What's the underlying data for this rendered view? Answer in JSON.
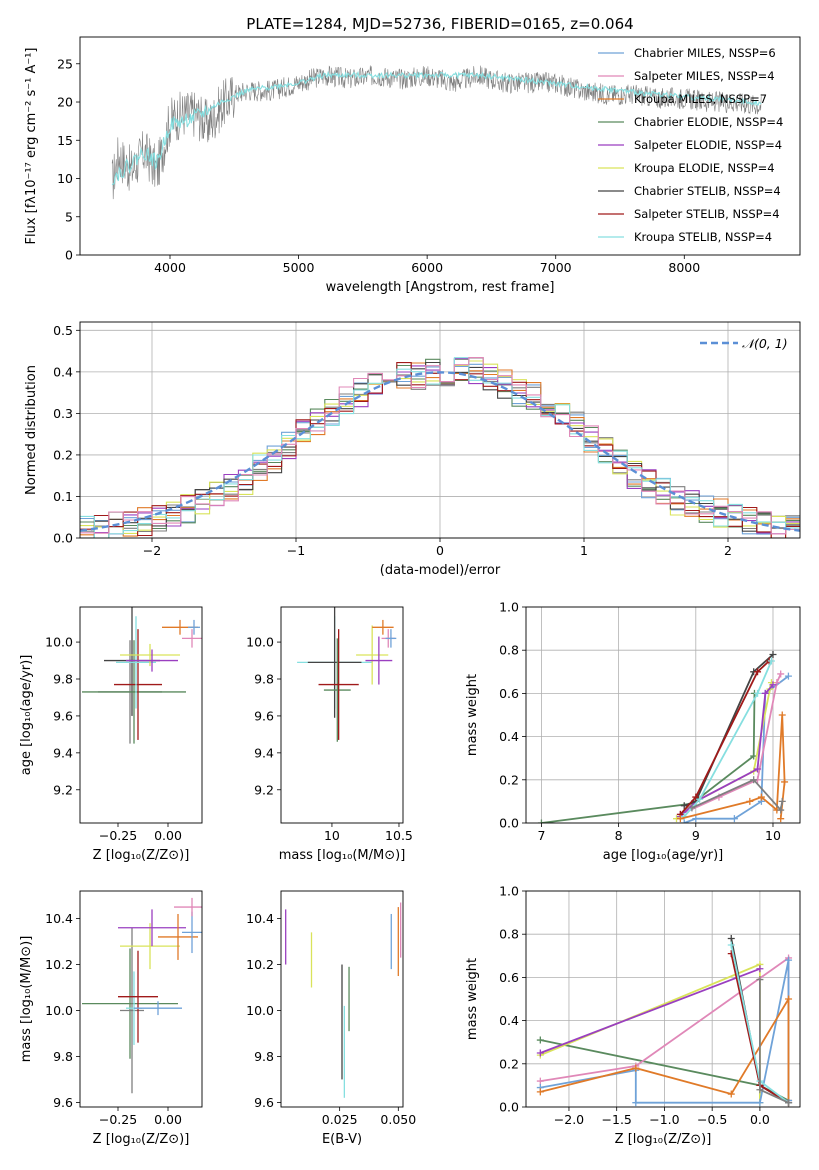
{
  "title": "PLATE=1284, MJD=52736, FIBERID=0165, z=0.064",
  "model_colors": [
    "#7f7f7f",
    "#6fa2d8",
    "#e07a28",
    "#5a8a5e",
    "#9a3fc0",
    "#d9e35a",
    "#444444",
    "#a01a1a",
    "#86dfe0",
    "#e088b8"
  ],
  "chart_data": [
    {
      "id": "spectrum",
      "type": "line",
      "xlabel": "wavelength [Angstrom, rest frame]",
      "ylabel": "Flux [fλ10⁻¹⁷ erg cm⁻² s⁻¹ A⁻¹]",
      "xlim": [
        3300,
        8900
      ],
      "ylim": [
        0,
        28.5
      ],
      "xticks": [
        4000,
        5000,
        6000,
        7000,
        8000
      ],
      "yticks": [
        0,
        5,
        10,
        15,
        20,
        25
      ],
      "grid": false,
      "legend_position": "top-right",
      "legend": [
        {
          "label": "Chabrier MILES, NSSP=6",
          "color": "#6fa2d8"
        },
        {
          "label": "Salpeter MILES, NSSP=4",
          "color": "#e088b8"
        },
        {
          "label": "Kroupa MILES, NSSP=7",
          "color": "#e07a28"
        },
        {
          "label": "Chabrier ELODIE, NSSP=4",
          "color": "#5a8a5e"
        },
        {
          "label": "Salpeter ELODIE, NSSP=4",
          "color": "#9a3fc0"
        },
        {
          "label": "Kroupa ELODIE, NSSP=4",
          "color": "#d9e35a"
        },
        {
          "label": "Chabrier STELIB, NSSP=4",
          "color": "#444444"
        },
        {
          "label": "Salpeter STELIB, NSSP=4",
          "color": "#a01a1a"
        },
        {
          "label": "Kroupa STELIB, NSSP=4",
          "color": "#86dfe0"
        }
      ],
      "series": [
        {
          "name": "data",
          "color": "#7f7f7f",
          "x": [
            3550,
            3600,
            3700,
            3800,
            3900,
            4000,
            4100,
            4200,
            4300,
            4400,
            4500,
            4600,
            4800,
            5000,
            5200,
            5400,
            5600,
            5800,
            6000,
            6200,
            6400,
            6600,
            6800,
            7000,
            7200,
            7400,
            7600,
            7800,
            8000,
            8200,
            8400,
            8600
          ],
          "y": [
            9.5,
            13,
            11,
            13.5,
            11,
            17.5,
            18.5,
            18.5,
            17,
            19.5,
            21,
            21.5,
            21.5,
            22.5,
            23.5,
            23,
            23.5,
            23,
            23.5,
            22.5,
            23.5,
            22.5,
            22.5,
            22.5,
            21.5,
            21,
            21,
            20.5,
            20.5,
            20,
            20,
            19.5
          ]
        },
        {
          "name": "model",
          "color": "#86dfe0",
          "x": [
            3550,
            3700,
            3800,
            3900,
            4000,
            4200,
            4400,
            4600,
            4800,
            5000,
            5200,
            5400,
            5600,
            6000,
            6400,
            6800,
            7200,
            7600,
            8000,
            8400,
            8600
          ],
          "y": [
            10,
            12,
            13.5,
            12,
            17,
            18,
            20,
            21.5,
            22,
            22.5,
            23.5,
            23.5,
            23.5,
            23.5,
            23.5,
            22.8,
            22,
            21.3,
            20.7,
            20.2,
            19.9
          ]
        }
      ]
    },
    {
      "id": "residuals",
      "type": "line",
      "xlabel": "(data-model)/error",
      "ylabel": "Normed distribution",
      "xlim": [
        -2.5,
        2.5
      ],
      "ylim": [
        0,
        0.52
      ],
      "xticks": [
        -2,
        -1,
        0,
        1,
        2
      ],
      "yticks": [
        0.0,
        0.1,
        0.2,
        0.3,
        0.4,
        0.5
      ],
      "grid": true,
      "legend_position": "top-right",
      "legend": [
        {
          "label": "𝒩(0, 1)",
          "color": "#5b8fd6"
        }
      ],
      "bin_width": 0.1,
      "series": [
        {
          "name": "reference",
          "values": [
            0.02,
            0.02,
            0.03,
            0.03,
            0.04,
            0.05,
            0.06,
            0.07,
            0.09,
            0.1,
            0.12,
            0.14,
            0.17,
            0.19,
            0.22,
            0.25,
            0.28,
            0.3,
            0.33,
            0.35,
            0.37,
            0.38,
            0.39,
            0.39,
            0.4,
            0.4,
            0.41,
            0.4,
            0.39,
            0.37,
            0.35,
            0.34,
            0.32,
            0.3,
            0.27,
            0.24,
            0.21,
            0.18,
            0.15,
            0.13,
            0.11,
            0.09,
            0.08,
            0.07,
            0.06,
            0.05,
            0.04,
            0.04,
            0.03,
            0.03
          ]
        }
      ]
    },
    {
      "id": "age-vs-Z",
      "type": "scatter",
      "xlabel": "Z [log₁₀(Z/Z⊙)]",
      "ylabel": "age  [log₁₀(age/yr)]",
      "xlim": [
        -0.44,
        0.17
      ],
      "ylim": [
        9.02,
        10.19
      ],
      "xticks": [
        -0.25,
        0.0
      ],
      "xticklabels": [
        "−0.25",
        "0.00"
      ],
      "yticks": [
        9.2,
        9.4,
        9.6,
        9.8,
        10.0
      ],
      "series": [
        {
          "x": -0.19,
          "y": 9.73,
          "xerr": 0.16,
          "yerr": 0.28,
          "color": "#7f7f7f"
        },
        {
          "x": -0.18,
          "y": 9.9,
          "xerr": 0.14,
          "yerr": 0.3,
          "color": "#444444"
        },
        {
          "x": -0.17,
          "y": 9.73,
          "xerr": 0.26,
          "yerr": 0.28,
          "color": "#5a8a5e"
        },
        {
          "x": -0.15,
          "y": 9.77,
          "xerr": 0.12,
          "yerr": 0.3,
          "color": "#a01a1a"
        },
        {
          "x": -0.16,
          "y": 9.89,
          "xerr": 0.1,
          "yerr": 0.25,
          "color": "#86dfe0"
        },
        {
          "x": -0.09,
          "y": 9.93,
          "xerr": 0.15,
          "yerr": 0.06,
          "color": "#d9e35a"
        },
        {
          "x": -0.08,
          "y": 9.9,
          "xerr": 0.13,
          "yerr": 0.06,
          "color": "#9a3fc0"
        },
        {
          "x": 0.06,
          "y": 10.08,
          "xerr": 0.09,
          "yerr": 0.04,
          "color": "#e07a28"
        },
        {
          "x": 0.12,
          "y": 10.02,
          "xerr": 0.05,
          "yerr": 0.05,
          "color": "#e088b8"
        },
        {
          "x": 0.13,
          "y": 10.08,
          "xerr": 0.03,
          "yerr": 0.04,
          "color": "#6fa2d8"
        }
      ]
    },
    {
      "id": "age-vs-mass",
      "type": "scatter",
      "xlabel": "mass [log₁₀(M/M⊙)]",
      "ylabel": "",
      "xlim": [
        9.62,
        10.53
      ],
      "ylim": [
        9.02,
        10.19
      ],
      "xticks": [
        10.0,
        10.5
      ],
      "yticks": [
        9.2,
        9.4,
        9.6,
        9.8,
        10.0
      ],
      "series": [
        {
          "x": 10.02,
          "y": 9.89,
          "xerr": 0.28,
          "yerr": 0.25,
          "color": "#86dfe0"
        },
        {
          "x": 10.02,
          "y": 9.89,
          "xerr": 0.2,
          "yerr": 0.3,
          "color": "#444444"
        },
        {
          "x": 10.04,
          "y": 9.74,
          "xerr": 0.1,
          "yerr": 0.28,
          "color": "#5a8a5e"
        },
        {
          "x": 10.05,
          "y": 9.77,
          "xerr": 0.15,
          "yerr": 0.3,
          "color": "#a01a1a"
        },
        {
          "x": 10.3,
          "y": 9.93,
          "xerr": 0.12,
          "yerr": 0.16,
          "color": "#d9e35a"
        },
        {
          "x": 10.35,
          "y": 9.9,
          "xerr": 0.1,
          "yerr": 0.13,
          "color": "#9a3fc0"
        },
        {
          "x": 10.38,
          "y": 10.08,
          "xerr": 0.08,
          "yerr": 0.04,
          "color": "#e07a28"
        },
        {
          "x": 10.42,
          "y": 10.02,
          "xerr": 0.05,
          "yerr": 0.05,
          "color": "#e088b8"
        },
        {
          "x": 10.44,
          "y": 10.02,
          "xerr": 0.04,
          "yerr": 0.05,
          "color": "#6fa2d8"
        }
      ]
    },
    {
      "id": "mass-weight-vs-age",
      "type": "line",
      "xlabel": "age  [log₁₀(age/yr)]",
      "ylabel": "mass weight",
      "xlim": [
        6.8,
        10.35
      ],
      "ylim": [
        0,
        1
      ],
      "xticks": [
        7,
        8,
        9,
        10
      ],
      "yticks": [
        0.0,
        0.2,
        0.4,
        0.6,
        0.8,
        1.0
      ],
      "grid": true,
      "series": [
        {
          "color": "#5a8a5e",
          "x": [
            7.0,
            8.95,
            9.75,
            9.76
          ],
          "y": [
            0.0,
            0.09,
            0.31,
            0.6
          ]
        },
        {
          "color": "#6fa2d8",
          "x": [
            8.85,
            9.0,
            9.5,
            9.85,
            9.9,
            10.2
          ],
          "y": [
            0.0,
            0.02,
            0.02,
            0.1,
            0.6,
            0.68
          ]
        },
        {
          "color": "#e088b8",
          "x": [
            8.8,
            9.3,
            9.8,
            10.05,
            10.1
          ],
          "y": [
            0.04,
            0.12,
            0.2,
            0.65,
            0.69
          ]
        },
        {
          "color": "#d9e35a",
          "x": [
            8.75,
            9.0,
            9.75,
            9.96,
            9.98
          ],
          "y": [
            0.02,
            0.1,
            0.24,
            0.62,
            0.65
          ]
        },
        {
          "color": "#9a3fc0",
          "x": [
            8.8,
            9.0,
            9.8,
            9.9,
            10.0
          ],
          "y": [
            0.03,
            0.1,
            0.25,
            0.6,
            0.64
          ]
        },
        {
          "color": "#444444",
          "x": [
            8.85,
            9.0,
            9.75,
            10.0
          ],
          "y": [
            0.08,
            0.1,
            0.7,
            0.78
          ]
        },
        {
          "color": "#a01a1a",
          "x": [
            8.8,
            9.0,
            9.8,
            9.95
          ],
          "y": [
            0.04,
            0.12,
            0.7,
            0.75
          ]
        },
        {
          "color": "#86dfe0",
          "x": [
            8.85,
            9.05,
            9.8,
            9.98
          ],
          "y": [
            0.03,
            0.11,
            0.6,
            0.75
          ]
        },
        {
          "color": "#e07a28",
          "x": [
            8.8,
            9.7,
            9.85,
            10.05,
            10.12,
            10.15,
            10.1
          ],
          "y": [
            0.02,
            0.1,
            0.12,
            0.06,
            0.5,
            0.19,
            0.02
          ]
        },
        {
          "color": "#7f7f7f",
          "x": [
            8.95,
            9.75,
            10.1,
            10.12
          ],
          "y": [
            0.07,
            0.2,
            0.06,
            0.1
          ]
        }
      ]
    },
    {
      "id": "mass-vs-Z",
      "type": "scatter",
      "xlabel": "Z [log₁₀(Z/Z⊙)]",
      "ylabel": "mass [log₁₀(M/M⊙)]",
      "xlim": [
        -0.44,
        0.17
      ],
      "ylim": [
        9.58,
        10.52
      ],
      "xticks": [
        -0.25,
        0.0
      ],
      "xticklabels": [
        "−0.25",
        "0.00"
      ],
      "yticks": [
        9.6,
        9.8,
        10.0,
        10.2,
        10.4
      ],
      "series": [
        {
          "x": -0.19,
          "y": 10.03,
          "xerr": 0.24,
          "yerr": 0.24,
          "color": "#5a8a5e"
        },
        {
          "x": -0.18,
          "y": 10.0,
          "xerr": 0.06,
          "yerr": 0.36,
          "color": "#7f7f7f"
        },
        {
          "x": -0.17,
          "y": 10.01,
          "xerr": 0.04,
          "yerr": 0.16,
          "color": "#86dfe0"
        },
        {
          "x": -0.15,
          "y": 10.06,
          "xerr": 0.1,
          "yerr": 0.2,
          "color": "#a01a1a"
        },
        {
          "x": -0.05,
          "y": 10.01,
          "xerr": 0.12,
          "yerr": 0.03,
          "color": "#6fa2d8"
        },
        {
          "x": -0.09,
          "y": 10.28,
          "xerr": 0.15,
          "yerr": 0.1,
          "color": "#d9e35a"
        },
        {
          "x": -0.08,
          "y": 10.36,
          "xerr": 0.17,
          "yerr": 0.08,
          "color": "#9a3fc0"
        },
        {
          "x": 0.05,
          "y": 10.32,
          "xerr": 0.1,
          "yerr": 0.1,
          "color": "#e07a28"
        },
        {
          "x": 0.12,
          "y": 10.34,
          "xerr": 0.05,
          "yerr": 0.09,
          "color": "#6fa2d8"
        },
        {
          "x": 0.12,
          "y": 10.45,
          "xerr": 0.09,
          "yerr": 0.04,
          "color": "#e088b8"
        }
      ]
    },
    {
      "id": "mass-vs-EBV",
      "type": "scatter",
      "xlabel": "E(B-V)",
      "ylabel": "",
      "xlim": [
        0.0,
        0.052
      ],
      "ylim": [
        9.58,
        10.52
      ],
      "xticks": [
        0.025,
        0.05
      ],
      "xticklabels": [
        "0.025",
        "0.050"
      ],
      "yticks": [
        9.6,
        9.8,
        10.0,
        10.2,
        10.4
      ],
      "series": [
        {
          "x": 0.002,
          "y": 10.32,
          "yerr": 0.12,
          "color": "#9a3fc0"
        },
        {
          "x": 0.013,
          "y": 10.22,
          "yerr": 0.12,
          "color": "#d9e35a"
        },
        {
          "x": 0.026,
          "y": 9.95,
          "yerr": 0.25,
          "color": "#444444"
        },
        {
          "x": 0.027,
          "y": 9.82,
          "yerr": 0.2,
          "color": "#86dfe0"
        },
        {
          "x": 0.029,
          "y": 10.05,
          "yerr": 0.14,
          "color": "#5a8a5e"
        },
        {
          "x": 0.047,
          "y": 10.3,
          "yerr": 0.12,
          "color": "#6fa2d8"
        },
        {
          "x": 0.05,
          "y": 10.3,
          "yerr": 0.15,
          "color": "#e07a28"
        },
        {
          "x": 0.051,
          "y": 10.35,
          "yerr": 0.12,
          "color": "#e088b8"
        }
      ]
    },
    {
      "id": "mass-weight-vs-Z",
      "type": "line",
      "xlabel": "Z [log₁₀(Z/Z⊙)]",
      "ylabel": "mass weight",
      "xlim": [
        -2.45,
        0.42
      ],
      "ylim": [
        0,
        1
      ],
      "xticks": [
        -2.0,
        -1.5,
        -1.0,
        -0.5,
        0.0
      ],
      "xticklabels": [
        "−2.0",
        "−1.5",
        "−1.0",
        "−0.5",
        "0.0"
      ],
      "yticks": [
        0.0,
        0.2,
        0.4,
        0.6,
        0.8,
        1.0
      ],
      "grid": true,
      "series": [
        {
          "color": "#5a8a5e",
          "x": [
            -2.3,
            0.0,
            0.3
          ],
          "y": [
            0.31,
            0.1,
            0.03
          ]
        },
        {
          "color": "#d9e35a",
          "x": [
            -2.3,
            0.0,
            0.0
          ],
          "y": [
            0.24,
            0.66,
            0.02
          ]
        },
        {
          "color": "#9a3fc0",
          "x": [
            -2.3,
            0.0
          ],
          "y": [
            0.25,
            0.64
          ]
        },
        {
          "color": "#e088b8",
          "x": [
            -2.3,
            -1.3,
            0.3,
            0.3
          ],
          "y": [
            0.12,
            0.19,
            0.69,
            0.03
          ]
        },
        {
          "color": "#6fa2d8",
          "x": [
            -2.3,
            -1.3,
            -1.3,
            0.0,
            0.3,
            0.3
          ],
          "y": [
            0.09,
            0.17,
            0.02,
            0.02,
            0.68,
            0.03
          ]
        },
        {
          "color": "#e07a28",
          "x": [
            -2.3,
            -1.3,
            -0.3,
            0.3,
            0.3
          ],
          "y": [
            0.07,
            0.18,
            0.06,
            0.5,
            0.02
          ]
        },
        {
          "color": "#444444",
          "x": [
            -0.3,
            0.0,
            0.3
          ],
          "y": [
            0.78,
            0.1,
            0.02
          ]
        },
        {
          "color": "#a01a1a",
          "x": [
            -0.3,
            0.0,
            0.3
          ],
          "y": [
            0.71,
            0.1,
            0.02
          ]
        },
        {
          "color": "#86dfe0",
          "x": [
            -0.3,
            0.0,
            0.3
          ],
          "y": [
            0.75,
            0.12,
            0.02
          ]
        },
        {
          "color": "#7f7f7f",
          "x": [
            0.0,
            0.0,
            0.3
          ],
          "y": [
            0.59,
            0.08,
            0.02
          ]
        }
      ]
    }
  ]
}
